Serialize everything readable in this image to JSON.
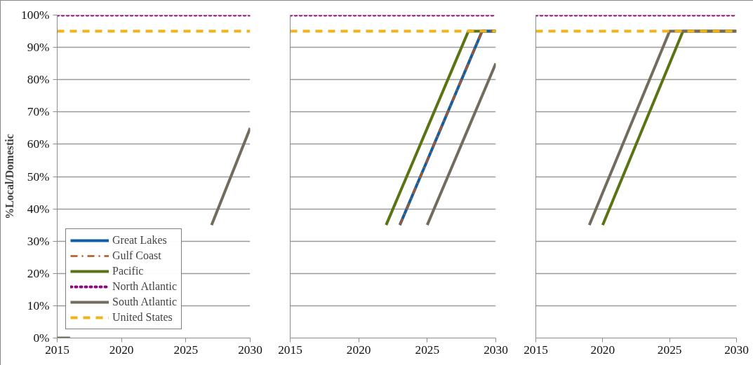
{
  "chart_data": [
    {
      "type": "line",
      "ylabel": "%Local/Domestic",
      "x": [
        2015,
        2016,
        2017,
        2018,
        2019,
        2020,
        2021,
        2022,
        2023,
        2024,
        2025,
        2026,
        2027,
        2028,
        2029,
        2030
      ],
      "xlim": [
        2015,
        2030
      ],
      "xticks": [
        2015,
        2020,
        2025,
        2030
      ],
      "ylim": [
        0,
        100
      ],
      "yticks": [
        {
          "value": 0,
          "label": "0%"
        },
        {
          "value": 10,
          "label": "10%"
        },
        {
          "value": 20,
          "label": "20%"
        },
        {
          "value": 30,
          "label": "30%"
        },
        {
          "value": 40,
          "label": "40%"
        },
        {
          "value": 50,
          "label": "50%"
        },
        {
          "value": 60,
          "label": "60%"
        },
        {
          "value": 70,
          "label": "70%"
        },
        {
          "value": 80,
          "label": "80%"
        },
        {
          "value": 90,
          "label": "90%"
        },
        {
          "value": 100,
          "label": "100%"
        }
      ],
      "grid": "y",
      "legend": "bottom left",
      "marker": "none",
      "series": [
        {
          "name": "Great Lakes",
          "color": "#0f5fa6",
          "line_style": "solid",
          "values": [
            null,
            null,
            null,
            null,
            null,
            null,
            null,
            null,
            null,
            null,
            null,
            null,
            null,
            null,
            null,
            null
          ]
        },
        {
          "name": "Gulf Coast",
          "color": "#b5541a",
          "line_style": "dashdot",
          "values": [
            null,
            null,
            null,
            null,
            null,
            null,
            null,
            null,
            null,
            null,
            null,
            null,
            null,
            null,
            null,
            null
          ]
        },
        {
          "name": "Pacific",
          "color": "#5a7314",
          "line_style": "solid",
          "values": [
            null,
            null,
            null,
            null,
            null,
            null,
            null,
            null,
            null,
            null,
            null,
            null,
            null,
            null,
            null,
            null
          ]
        },
        {
          "name": "North Atlantic",
          "color": "#8b0a7a",
          "line_style": "dotted",
          "values": [
            100,
            100,
            100,
            100,
            100,
            100,
            100,
            100,
            100,
            100,
            100,
            100,
            100,
            100,
            100,
            100
          ]
        },
        {
          "name": "South Atlantic",
          "color": "#736c5c",
          "line_style": "solid",
          "values": [
            0,
            0,
            null,
            null,
            null,
            null,
            null,
            null,
            null,
            null,
            null,
            null,
            35,
            45,
            55,
            65
          ]
        },
        {
          "name": "United States",
          "color": "#f0b31a",
          "line_style": "dashed",
          "values": [
            95,
            95,
            95,
            95,
            95,
            95,
            95,
            95,
            95,
            95,
            95,
            95,
            95,
            95,
            95,
            95
          ]
        }
      ]
    },
    {
      "type": "line",
      "x": [
        2015,
        2016,
        2017,
        2018,
        2019,
        2020,
        2021,
        2022,
        2023,
        2024,
        2025,
        2026,
        2027,
        2028,
        2029,
        2030
      ],
      "xlim": [
        2015,
        2030
      ],
      "xticks": [
        2015,
        2020,
        2025,
        2030
      ],
      "ylim": [
        0,
        100
      ],
      "yticks": [
        0,
        10,
        20,
        30,
        40,
        50,
        60,
        70,
        80,
        90,
        100
      ],
      "tick_labels": "x",
      "grid": "y",
      "marker": "none",
      "series": [
        {
          "color": "#5a7314",
          "line_style": "solid",
          "values": [
            null,
            null,
            null,
            null,
            null,
            null,
            null,
            35,
            45,
            55,
            65,
            75,
            85,
            95,
            95,
            95
          ]
        },
        {
          "color": "#0f5fa6",
          "line_style": "solid",
          "values": [
            null,
            null,
            null,
            null,
            null,
            null,
            null,
            null,
            35,
            45,
            55,
            65,
            75,
            85,
            95,
            95
          ]
        },
        {
          "color": "#b5541a",
          "line_style": "dashdot",
          "values": [
            null,
            null,
            null,
            null,
            null,
            null,
            null,
            null,
            35,
            45,
            55,
            65,
            75,
            85,
            95,
            95
          ]
        },
        {
          "color": "#8b0a7a",
          "line_style": "dotted",
          "values": [
            100,
            100,
            100,
            100,
            100,
            100,
            100,
            100,
            100,
            100,
            100,
            100,
            100,
            100,
            100,
            100
          ]
        },
        {
          "color": "#736c5c",
          "line_style": "solid",
          "values": [
            null,
            null,
            null,
            null,
            null,
            null,
            null,
            null,
            null,
            null,
            35,
            45,
            55,
            65,
            75,
            85
          ]
        },
        {
          "color": "#f0b31a",
          "line_style": "dashed",
          "values": [
            95,
            95,
            95,
            95,
            95,
            95,
            95,
            95,
            95,
            95,
            95,
            95,
            95,
            95,
            95,
            95
          ]
        }
      ]
    },
    {
      "type": "line",
      "x": [
        2015,
        2016,
        2017,
        2018,
        2019,
        2020,
        2021,
        2022,
        2023,
        2024,
        2025,
        2026,
        2027,
        2028,
        2029,
        2030
      ],
      "xlim": [
        2015,
        2030
      ],
      "xticks": [
        2015,
        2020,
        2025,
        2030
      ],
      "ylim": [
        0,
        100
      ],
      "yticks": [
        0,
        10,
        20,
        30,
        40,
        50,
        60,
        70,
        80,
        90,
        100
      ],
      "tick_labels": "x",
      "grid": "y",
      "marker": "none",
      "series": [
        {
          "color": "#5a7314",
          "line_style": "solid",
          "values": [
            null,
            null,
            null,
            null,
            null,
            35,
            45,
            55,
            65,
            75,
            85,
            95,
            95,
            95,
            95,
            95
          ]
        },
        {
          "color": "#8b0a7a",
          "line_style": "dotted",
          "values": [
            100,
            100,
            100,
            100,
            100,
            100,
            100,
            100,
            100,
            100,
            100,
            100,
            100,
            100,
            100,
            100
          ]
        },
        {
          "color": "#736c5c",
          "line_style": "solid",
          "values": [
            null,
            null,
            null,
            null,
            35,
            45,
            55,
            65,
            75,
            85,
            95,
            95,
            95,
            95,
            95,
            95
          ]
        },
        {
          "color": "#f0b31a",
          "line_style": "dashed",
          "values": [
            95,
            95,
            95,
            95,
            95,
            95,
            95,
            95,
            95,
            95,
            95,
            95,
            95,
            95,
            95,
            95
          ]
        }
      ]
    }
  ]
}
